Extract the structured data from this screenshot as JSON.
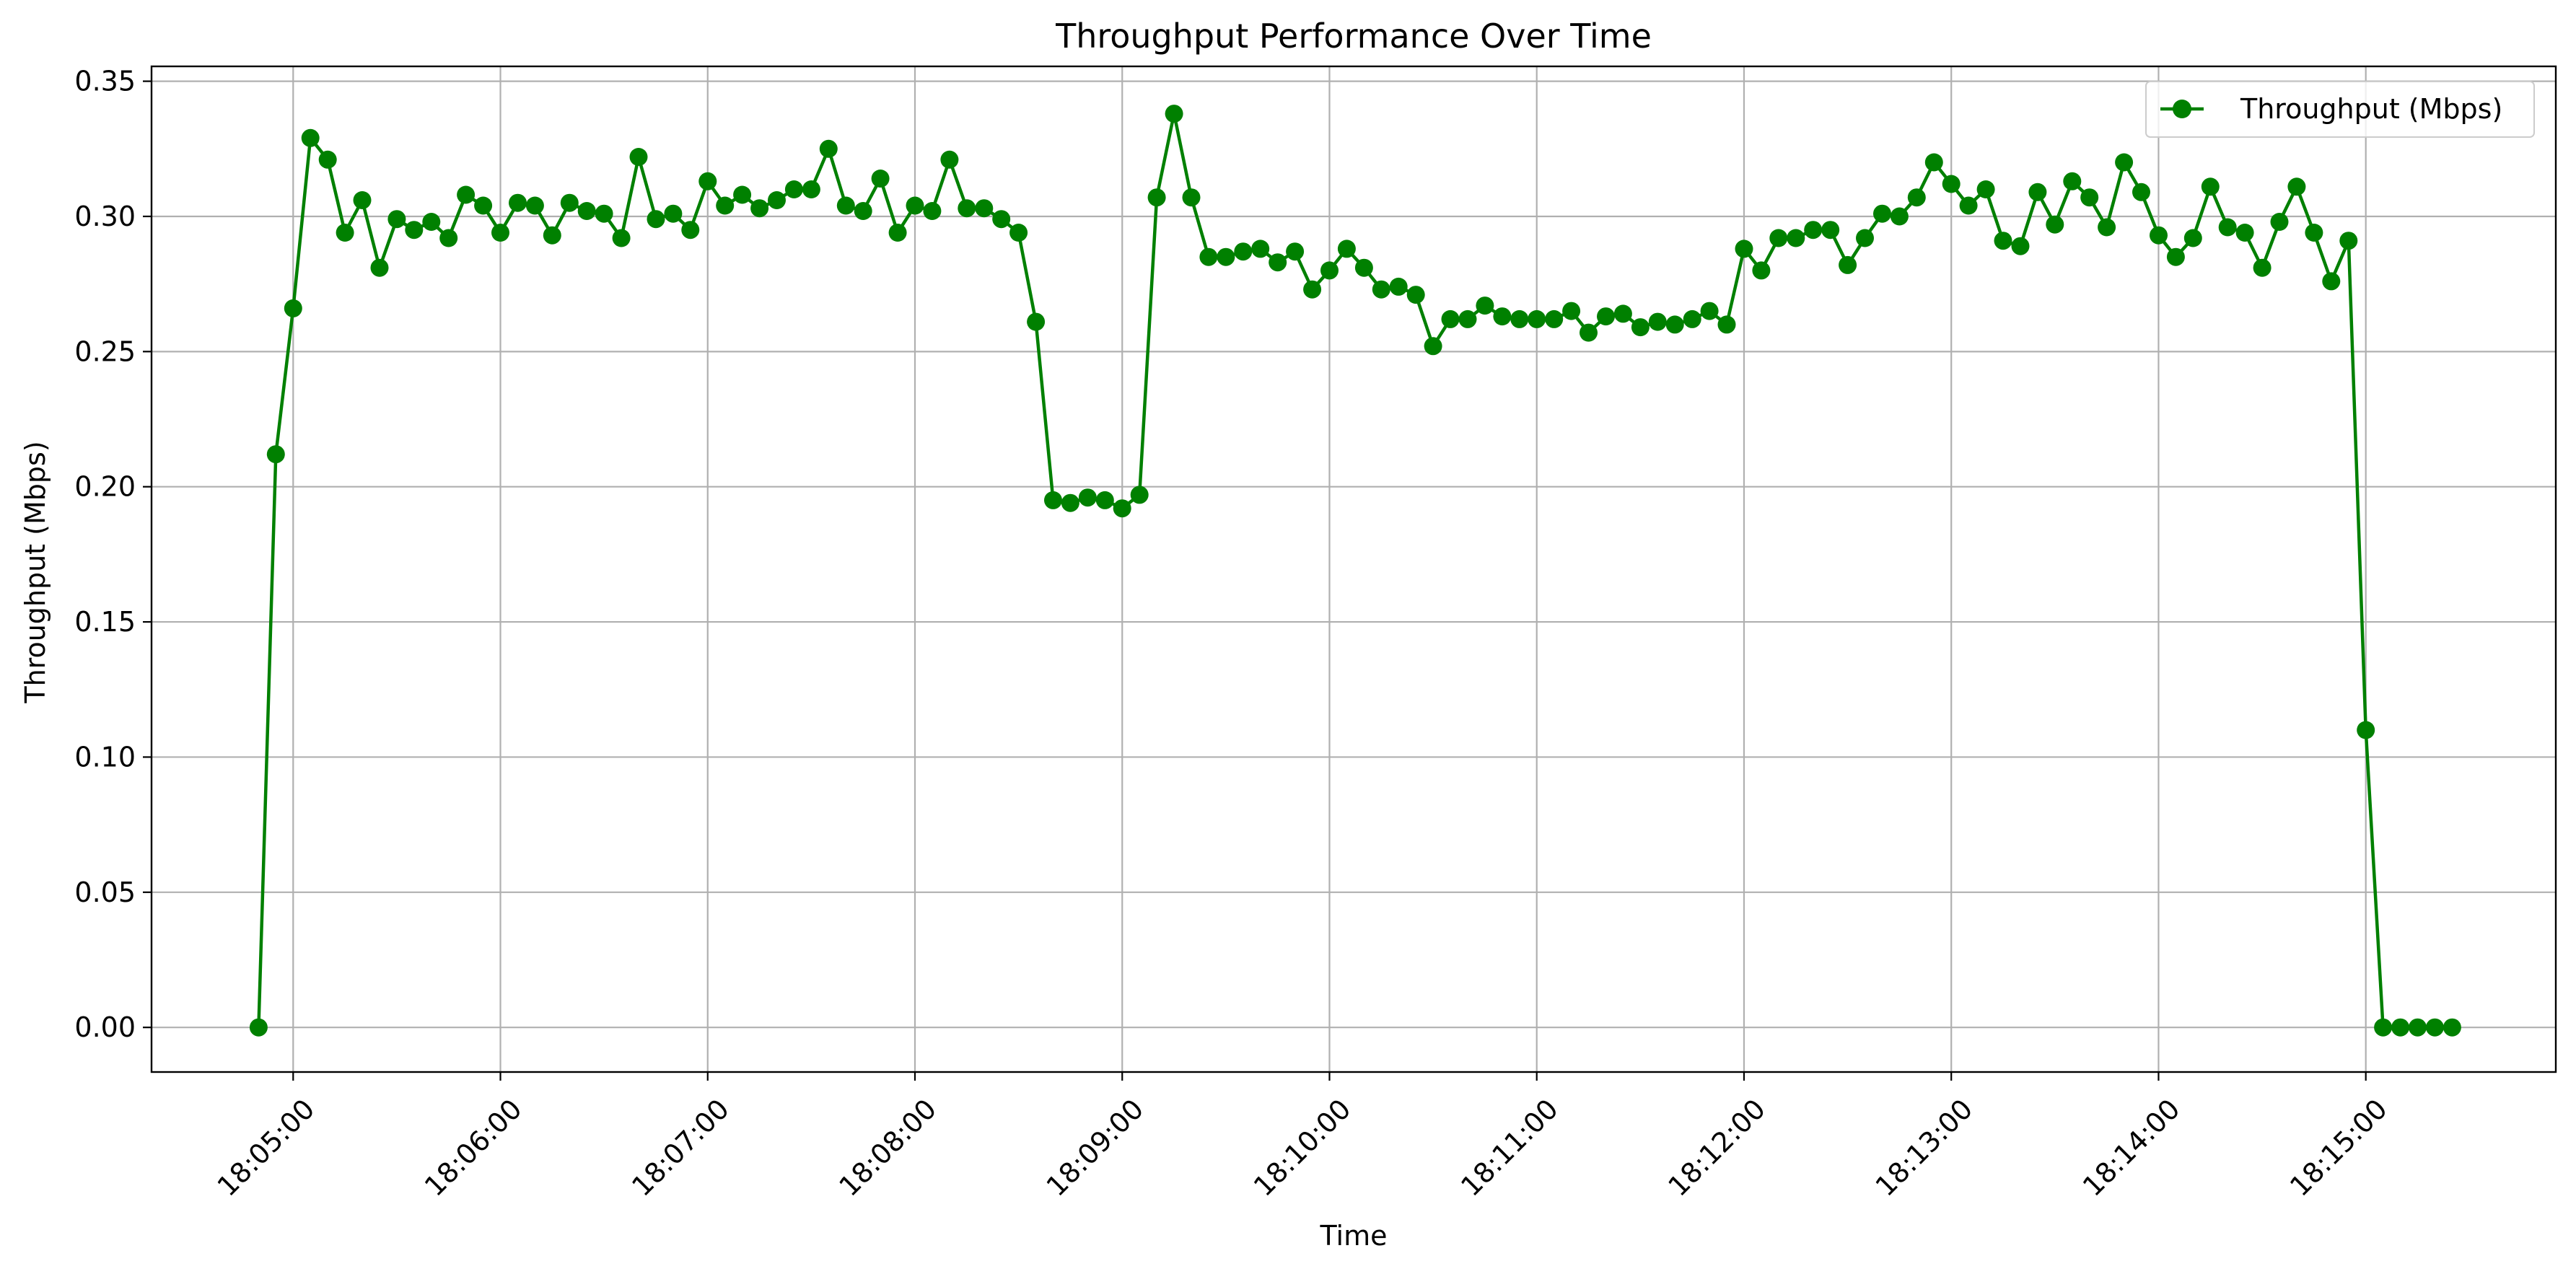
{
  "chart_data": {
    "type": "line",
    "title": "Throughput Performance Over Time",
    "xlabel": "Time",
    "ylabel": "Throughput (Mbps)",
    "xlim": [
      "18:04:19",
      "18:15:55"
    ],
    "ylim": [
      -0.0165,
      0.3555
    ],
    "grid": true,
    "legend_position": "top-right",
    "x_ticks": [
      "18:05:00",
      "18:06:00",
      "18:07:00",
      "18:08:00",
      "18:09:00",
      "18:10:00",
      "18:11:00",
      "18:12:00",
      "18:13:00",
      "18:14:00",
      "18:15:00"
    ],
    "y_ticks": [
      "0.00",
      "0.05",
      "0.10",
      "0.15",
      "0.20",
      "0.25",
      "0.30",
      "0.35"
    ],
    "series": [
      {
        "name": "Throughput (Mbps)",
        "color": "#008000",
        "marker": "circle",
        "x": [
          "18:04:50",
          "18:04:55",
          "18:05:00",
          "18:05:05",
          "18:05:10",
          "18:05:15",
          "18:05:20",
          "18:05:25",
          "18:05:30",
          "18:05:35",
          "18:05:40",
          "18:05:45",
          "18:05:50",
          "18:05:55",
          "18:06:00",
          "18:06:05",
          "18:06:10",
          "18:06:15",
          "18:06:20",
          "18:06:25",
          "18:06:30",
          "18:06:35",
          "18:06:40",
          "18:06:45",
          "18:06:50",
          "18:06:55",
          "18:07:00",
          "18:07:05",
          "18:07:10",
          "18:07:15",
          "18:07:20",
          "18:07:25",
          "18:07:30",
          "18:07:35",
          "18:07:40",
          "18:07:45",
          "18:07:50",
          "18:07:55",
          "18:08:00",
          "18:08:05",
          "18:08:10",
          "18:08:15",
          "18:08:20",
          "18:08:25",
          "18:08:30",
          "18:08:35",
          "18:08:40",
          "18:08:45",
          "18:08:50",
          "18:08:55",
          "18:09:00",
          "18:09:05",
          "18:09:10",
          "18:09:15",
          "18:09:20",
          "18:09:25",
          "18:09:30",
          "18:09:35",
          "18:09:40",
          "18:09:45",
          "18:09:50",
          "18:09:55",
          "18:10:00",
          "18:10:05",
          "18:10:10",
          "18:10:15",
          "18:10:20",
          "18:10:25",
          "18:10:30",
          "18:10:35",
          "18:10:40",
          "18:10:45",
          "18:10:50",
          "18:10:55",
          "18:11:00",
          "18:11:05",
          "18:11:10",
          "18:11:15",
          "18:11:20",
          "18:11:25",
          "18:11:30",
          "18:11:35",
          "18:11:40",
          "18:11:45",
          "18:11:50",
          "18:11:55",
          "18:12:00",
          "18:12:05",
          "18:12:10",
          "18:12:15",
          "18:12:20",
          "18:12:25",
          "18:12:30",
          "18:12:35",
          "18:12:40",
          "18:12:45",
          "18:12:50",
          "18:12:55",
          "18:13:00",
          "18:13:05",
          "18:13:10",
          "18:13:15",
          "18:13:20",
          "18:13:25",
          "18:13:30",
          "18:13:35",
          "18:13:40",
          "18:13:45",
          "18:13:50",
          "18:13:55",
          "18:14:00",
          "18:14:05",
          "18:14:10",
          "18:14:15",
          "18:14:20",
          "18:14:25",
          "18:14:30",
          "18:14:35",
          "18:14:40",
          "18:14:45",
          "18:14:50",
          "18:14:55",
          "18:15:00",
          "18:15:05",
          "18:15:10",
          "18:15:15",
          "18:15:20",
          "18:15:25"
        ],
        "values": [
          0.0,
          0.212,
          0.266,
          0.329,
          0.321,
          0.294,
          0.306,
          0.281,
          0.299,
          0.295,
          0.298,
          0.292,
          0.308,
          0.304,
          0.294,
          0.305,
          0.304,
          0.293,
          0.305,
          0.302,
          0.301,
          0.292,
          0.322,
          0.299,
          0.301,
          0.295,
          0.313,
          0.304,
          0.308,
          0.303,
          0.306,
          0.31,
          0.31,
          0.325,
          0.304,
          0.302,
          0.314,
          0.294,
          0.304,
          0.302,
          0.321,
          0.303,
          0.303,
          0.299,
          0.294,
          0.261,
          0.195,
          0.194,
          0.196,
          0.195,
          0.192,
          0.197,
          0.307,
          0.338,
          0.307,
          0.285,
          0.285,
          0.287,
          0.288,
          0.283,
          0.287,
          0.273,
          0.28,
          0.288,
          0.281,
          0.273,
          0.274,
          0.271,
          0.252,
          0.262,
          0.262,
          0.267,
          0.263,
          0.262,
          0.262,
          0.262,
          0.265,
          0.257,
          0.263,
          0.264,
          0.259,
          0.261,
          0.26,
          0.262,
          0.265,
          0.26,
          0.288,
          0.28,
          0.292,
          0.292,
          0.295,
          0.295,
          0.282,
          0.292,
          0.301,
          0.3,
          0.307,
          0.32,
          0.312,
          0.304,
          0.31,
          0.291,
          0.289,
          0.309,
          0.297,
          0.313,
          0.307,
          0.296,
          0.32,
          0.309,
          0.293,
          0.285,
          0.292,
          0.311,
          0.296,
          0.294,
          0.281,
          0.298,
          0.311,
          0.294,
          0.276,
          0.291,
          0.11,
          0.0,
          0.0,
          0.0,
          0.0,
          0.0
        ]
      }
    ]
  }
}
